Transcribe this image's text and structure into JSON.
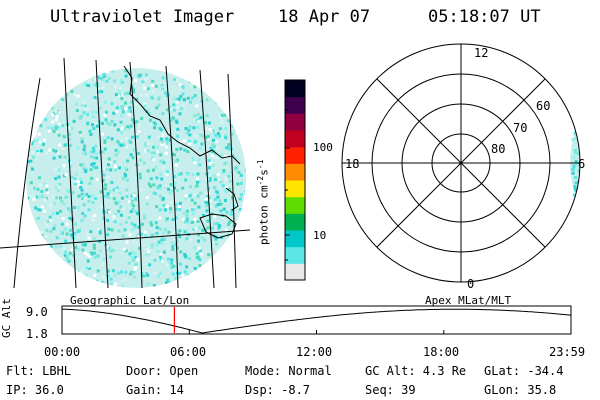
{
  "header": {
    "title": "Ultraviolet Imager",
    "date": "18 Apr 07",
    "time": "05:18:07 UT"
  },
  "colorbar": {
    "label": "photon cm⁻²s⁻¹",
    "label_base": "photon cm",
    "label_exp1": "-2",
    "label_mid": "s",
    "label_exp2": "-1",
    "ticks": [
      "100",
      "10"
    ],
    "colors": [
      "#e8e8e8",
      "#5ce6e6",
      "#00c8c8",
      "#00b050",
      "#5fdd00",
      "#ffe600",
      "#ff8c00",
      "#ff2000",
      "#c00020",
      "#900040",
      "#400050",
      "#000020"
    ]
  },
  "polar": {
    "mlt_labels": {
      "top": "12",
      "left": "18",
      "right": "6",
      "bottom": "0"
    },
    "lat_labels": [
      "60",
      "70",
      "80"
    ]
  },
  "panels": {
    "left_label": "Geographic Lat/Lon",
    "right_label": "Apex MLat/MLT"
  },
  "altitude_plot": {
    "ylabel": "GC Alt",
    "ytick_top": "9.0",
    "ytick_bottom": "1.8",
    "xticks": [
      "00:00",
      "06:00",
      "12:00",
      "18:00",
      "23:59"
    ],
    "marker_time_hours": 5.3
  },
  "info": {
    "row1": {
      "flt": "Flt: LBHL",
      "door": "Door: Open",
      "mode": "Mode: Normal",
      "gcalt": "GC Alt: 4.3 Re",
      "glat": "GLat: -34.4"
    },
    "row2": {
      "ip": "IP: 36.0",
      "gain": "Gain: 14",
      "dsp": "Dsp:   -8.7",
      "seq": "Seq: 39",
      "glon": "GLon:  35.8"
    }
  }
}
